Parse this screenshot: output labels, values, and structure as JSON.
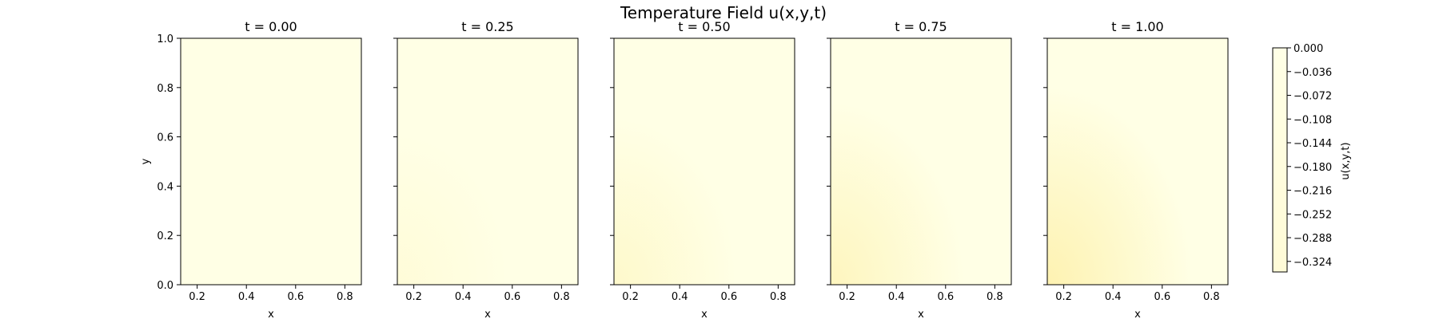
{
  "chart_data": {
    "type": "heatmap",
    "suptitle": "Temperature Field u(x,y,t)",
    "xlabel": "x",
    "ylabel": "y",
    "xlim": [
      0.133,
      0.867
    ],
    "ylim": [
      0.0,
      1.0
    ],
    "xticks": [
      0.2,
      0.4,
      0.6,
      0.8
    ],
    "xtick_labels": [
      "0.2",
      "0.4",
      "0.6",
      "0.8"
    ],
    "yticks": [
      0.0,
      0.2,
      0.4,
      0.6,
      0.8,
      1.0
    ],
    "ytick_labels": [
      "0.0",
      "0.2",
      "0.4",
      "0.6",
      "0.8",
      "1.0"
    ],
    "panels": [
      {
        "title": "t = 0.00",
        "t": 0.0
      },
      {
        "title": "t = 0.25",
        "t": 0.25
      },
      {
        "title": "t = 0.50",
        "t": 0.5
      },
      {
        "title": "t = 0.75",
        "t": 0.75
      },
      {
        "title": "t = 1.00",
        "t": 1.0
      }
    ],
    "field_note": "field is near 0 everywhere; slight negative values develop near the bottom-left corner (x≈0.2, y≈0) at later times",
    "colorbar": {
      "label": "u(x,y,t)",
      "range": [
        -0.34,
        0.0
      ],
      "ticks": [
        0.0,
        -0.036,
        -0.072,
        -0.108,
        -0.144,
        -0.18,
        -0.216,
        -0.252,
        -0.288,
        -0.324
      ],
      "tick_labels": [
        "0.000",
        "−0.036",
        "−0.072",
        "−0.108",
        "−0.144",
        "−0.180",
        "−0.216",
        "−0.252",
        "−0.288",
        "−0.324"
      ],
      "colormap": "YlOrRd_r",
      "top_color": "#ffffe5"
    }
  }
}
